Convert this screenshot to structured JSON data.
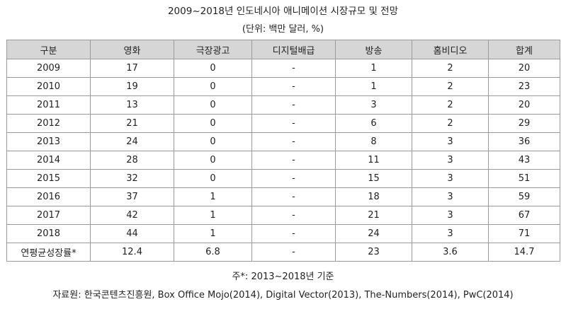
{
  "title": "2009~2018년 인도네시아 애니메이션 시장규모 및 전망",
  "unit": "(단위: 백만 달러, %)",
  "columns": [
    "구분",
    "영화",
    "극장광고",
    "디지털배급",
    "방송",
    "홈비디오",
    "합계"
  ],
  "rows": [
    [
      "2009",
      "17",
      "0",
      "-",
      "1",
      "2",
      "20"
    ],
    [
      "2010",
      "19",
      "0",
      "-",
      "1",
      "2",
      "23"
    ],
    [
      "2011",
      "13",
      "0",
      "-",
      "3",
      "2",
      "20"
    ],
    [
      "2012",
      "21",
      "0",
      "-",
      "6",
      "2",
      "29"
    ],
    [
      "2013",
      "24",
      "0",
      "-",
      "8",
      "3",
      "36"
    ],
    [
      "2014",
      "28",
      "0",
      "-",
      "11",
      "3",
      "43"
    ],
    [
      "2015",
      "32",
      "0",
      "-",
      "15",
      "3",
      "51"
    ],
    [
      "2016",
      "37",
      "1",
      "-",
      "18",
      "3",
      "59"
    ],
    [
      "2017",
      "42",
      "1",
      "-",
      "21",
      "3",
      "67"
    ],
    [
      "2018",
      "44",
      "1",
      "-",
      "24",
      "3",
      "71"
    ],
    [
      "연평균성장률*",
      "12.4",
      "6.8",
      "-",
      "23",
      "3.6",
      "14.7"
    ]
  ],
  "note": "주*: 2013~2018년 기준",
  "source": "자료원: 한국콘텐츠진흥원, Box Office Mojo(2014), Digital Vector(2013), The-Numbers(2014), PwC(2014)"
}
